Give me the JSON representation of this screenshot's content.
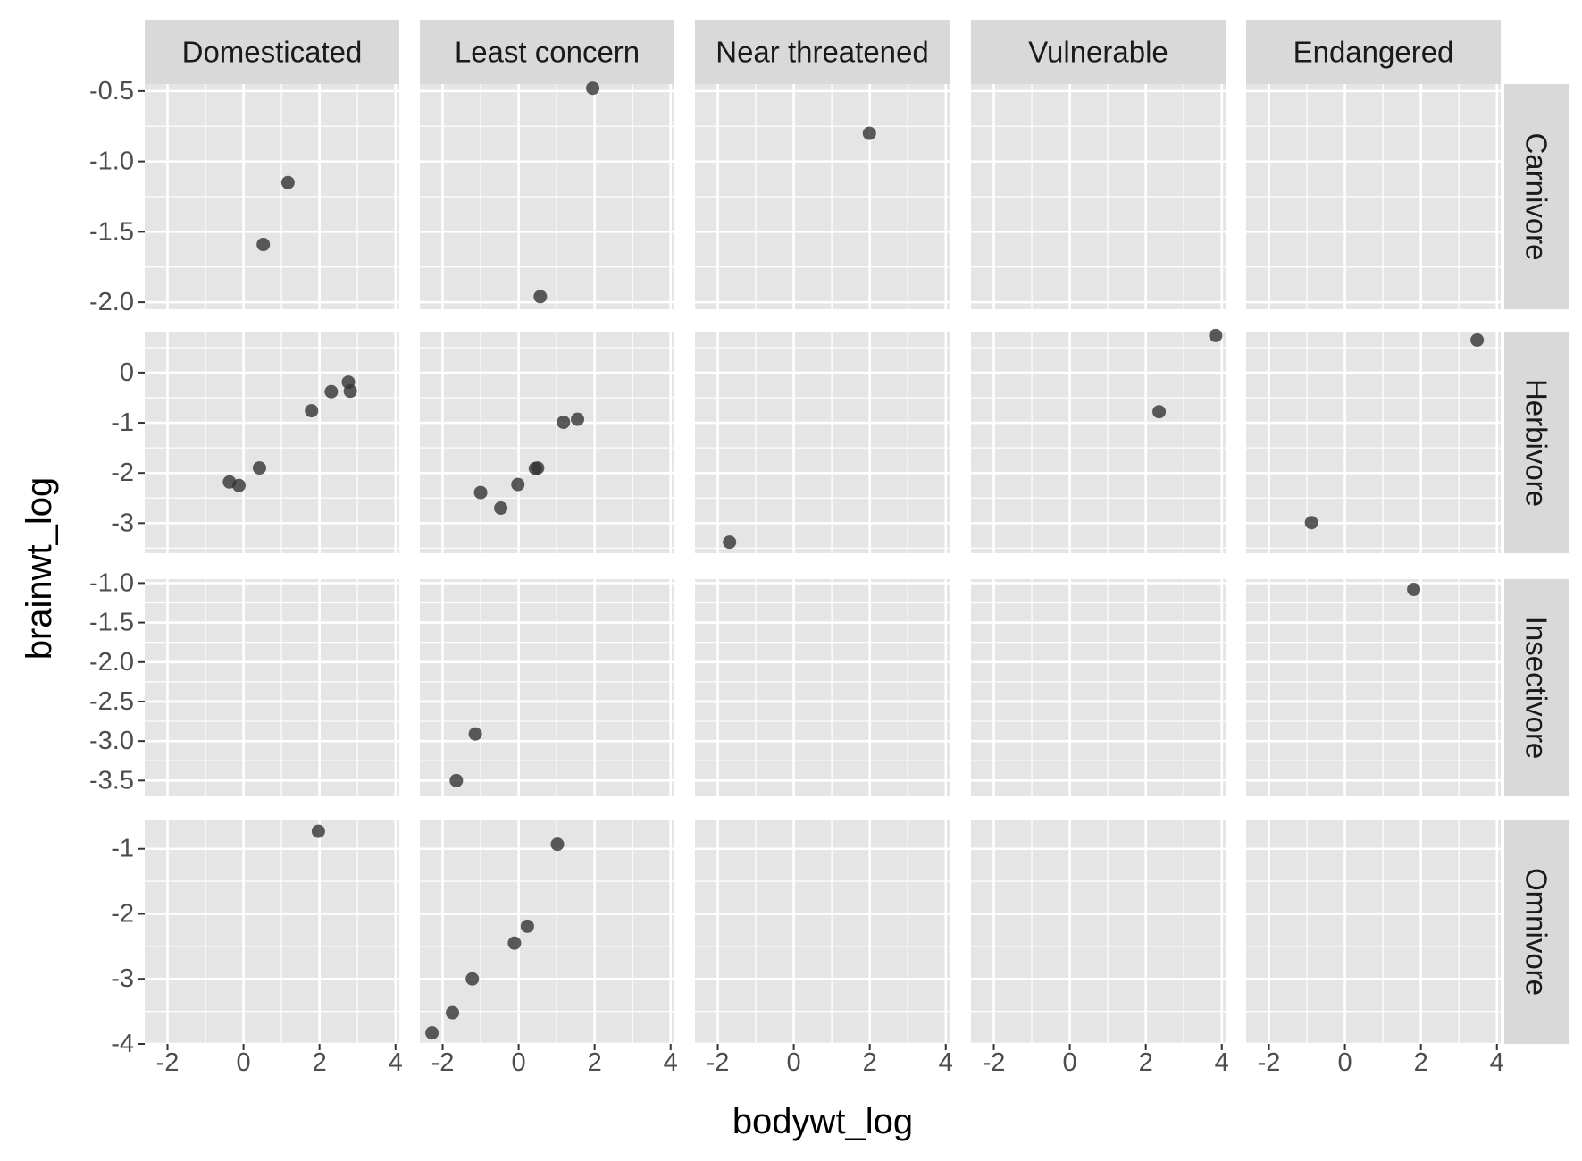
{
  "chart_data": {
    "type": "scatter",
    "xlabel": "bodywt_log",
    "ylabel": "brainwt_log",
    "col_facets": [
      "Domesticated",
      "Least concern",
      "Near threatened",
      "Vulnerable",
      "Endangered"
    ],
    "row_facets": [
      "Carnivore",
      "Herbivore",
      "Insectivore",
      "Omnivore"
    ],
    "x_axis": {
      "range": [
        -2.6,
        4.1
      ],
      "ticks": [
        -2,
        0,
        2,
        4
      ],
      "labels": [
        "-2",
        "0",
        "2",
        "4"
      ]
    },
    "rows": [
      {
        "name": "Carnivore",
        "range": [
          -2.05,
          -0.45
        ],
        "ticks": [
          -0.5,
          -1.0,
          -1.5,
          -2.0
        ],
        "labels": [
          "-0.5",
          "-1.0",
          "-1.5",
          "-2.0"
        ]
      },
      {
        "name": "Herbivore",
        "range": [
          -3.6,
          0.8
        ],
        "ticks": [
          0,
          -1,
          -2,
          -3
        ],
        "labels": [
          "0",
          "-1",
          "-2",
          "-3"
        ]
      },
      {
        "name": "Insectivore",
        "range": [
          -3.7,
          -0.95
        ],
        "ticks": [
          -1.0,
          -1.5,
          -2.0,
          -2.5,
          -3.0,
          -3.5
        ],
        "labels": [
          "-1.0",
          "-1.5",
          "-2.0",
          "-2.5",
          "-3.0",
          "-3.5"
        ]
      },
      {
        "name": "Omnivore",
        "range": [
          -4.0,
          -0.55
        ],
        "ticks": [
          -1,
          -2,
          -3,
          -4
        ],
        "labels": [
          "-1",
          "-2",
          "-3",
          "-4"
        ]
      }
    ],
    "points": [
      {
        "col": "Domesticated",
        "row": "Carnivore",
        "x": 1.17,
        "y": -1.15
      },
      {
        "col": "Domesticated",
        "row": "Carnivore",
        "x": 0.52,
        "y": -1.59
      },
      {
        "col": "Least concern",
        "row": "Carnivore",
        "x": 1.95,
        "y": -0.48
      },
      {
        "col": "Least concern",
        "row": "Carnivore",
        "x": 0.57,
        "y": -1.96
      },
      {
        "col": "Near threatened",
        "row": "Carnivore",
        "x": 1.99,
        "y": -0.8
      },
      {
        "col": "Domesticated",
        "row": "Herbivore",
        "x": -0.37,
        "y": -2.18
      },
      {
        "col": "Domesticated",
        "row": "Herbivore",
        "x": -0.12,
        "y": -2.25
      },
      {
        "col": "Domesticated",
        "row": "Herbivore",
        "x": 0.42,
        "y": -1.9
      },
      {
        "col": "Domesticated",
        "row": "Herbivore",
        "x": 1.79,
        "y": -0.76
      },
      {
        "col": "Domesticated",
        "row": "Herbivore",
        "x": 2.31,
        "y": -0.38
      },
      {
        "col": "Domesticated",
        "row": "Herbivore",
        "x": 2.76,
        "y": -0.19
      },
      {
        "col": "Domesticated",
        "row": "Herbivore",
        "x": 2.81,
        "y": -0.37
      },
      {
        "col": "Least concern",
        "row": "Herbivore",
        "x": -1.0,
        "y": -2.39
      },
      {
        "col": "Least concern",
        "row": "Herbivore",
        "x": -0.47,
        "y": -2.7
      },
      {
        "col": "Least concern",
        "row": "Herbivore",
        "x": -0.02,
        "y": -2.23
      },
      {
        "col": "Least concern",
        "row": "Herbivore",
        "x": 0.44,
        "y": -1.91
      },
      {
        "col": "Least concern",
        "row": "Herbivore",
        "x": 0.5,
        "y": -1.9
      },
      {
        "col": "Least concern",
        "row": "Herbivore",
        "x": 1.18,
        "y": -0.99
      },
      {
        "col": "Least concern",
        "row": "Herbivore",
        "x": 1.55,
        "y": -0.93
      },
      {
        "col": "Near threatened",
        "row": "Herbivore",
        "x": -1.69,
        "y": -3.38
      },
      {
        "col": "Vulnerable",
        "row": "Herbivore",
        "x": 2.35,
        "y": -0.78
      },
      {
        "col": "Vulnerable",
        "row": "Herbivore",
        "x": 3.84,
        "y": 0.74
      },
      {
        "col": "Endangered",
        "row": "Herbivore",
        "x": -0.88,
        "y": -2.99
      },
      {
        "col": "Endangered",
        "row": "Herbivore",
        "x": 3.48,
        "y": 0.65
      },
      {
        "col": "Least concern",
        "row": "Insectivore",
        "x": -1.14,
        "y": -2.91
      },
      {
        "col": "Least concern",
        "row": "Insectivore",
        "x": -1.64,
        "y": -3.5
      },
      {
        "col": "Endangered",
        "row": "Insectivore",
        "x": 1.81,
        "y": -1.08
      },
      {
        "col": "Domesticated",
        "row": "Omnivore",
        "x": 1.97,
        "y": -0.73
      },
      {
        "col": "Least concern",
        "row": "Omnivore",
        "x": 1.02,
        "y": -0.93
      },
      {
        "col": "Least concern",
        "row": "Omnivore",
        "x": 0.23,
        "y": -2.19
      },
      {
        "col": "Least concern",
        "row": "Omnivore",
        "x": -0.11,
        "y": -2.45
      },
      {
        "col": "Least concern",
        "row": "Omnivore",
        "x": -1.22,
        "y": -3.0
      },
      {
        "col": "Least concern",
        "row": "Omnivore",
        "x": -1.74,
        "y": -3.52
      },
      {
        "col": "Least concern",
        "row": "Omnivore",
        "x": -2.28,
        "y": -3.83
      }
    ],
    "grid": true,
    "legend": "none",
    "colors": {
      "panel": "#e5e5e5",
      "strip": "#d9d9d9",
      "point": "#333333",
      "grid": "#ffffff"
    }
  }
}
